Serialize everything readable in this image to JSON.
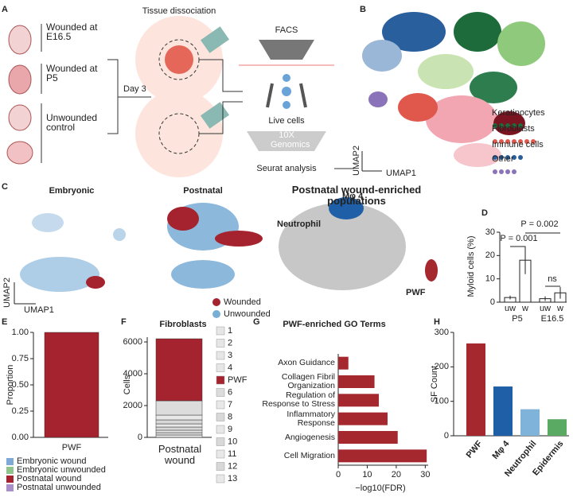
{
  "panel_labels": [
    "A",
    "B",
    "C",
    "D",
    "E",
    "F",
    "G",
    "H"
  ],
  "schematic": {
    "groups": [
      "Wounded at\nE16.5",
      "Wounded at\nP5",
      "Unwounded\ncontrol"
    ],
    "day": "Day 3",
    "dissociation": "Tissue dissociation",
    "facs": "FACS",
    "live": "Live cells",
    "genomics": "10X\nGenomics",
    "seurat": "Seurat analysis"
  },
  "umap_b": {
    "legend": [
      "Keratinocytes",
      "Fibroblasts",
      "Immune cells",
      "Other"
    ],
    "x_label": "UMAP1",
    "y_label": "UMAP2"
  },
  "umap_c": {
    "titles": [
      "Embryonic",
      "Postnatal",
      "Postnatal wound-enriched\npopulations"
    ],
    "labels": [
      "Neutrophil",
      "Mφ 4",
      "PWF"
    ],
    "legend": [
      {
        "name": "Wounded",
        "color": "#a4232e"
      },
      {
        "name": "Unwounded",
        "color": "#79aed4"
      }
    ],
    "x_label": "UMAP1",
    "y_label": "UMAP2"
  },
  "chart_data": [
    {
      "type": "bar",
      "ylabel": "Myloid cells (%)",
      "categories": [
        "uw",
        "w",
        "uw",
        "w"
      ],
      "groups": [
        "P5",
        "E16.5"
      ],
      "values": [
        2,
        18,
        1.5,
        4
      ],
      "errors": [
        0.8,
        6,
        1,
        2.5
      ],
      "ylim": [
        0,
        30
      ],
      "yticks": [
        0,
        10,
        20,
        30
      ],
      "annotations": [
        "P = 0.002",
        "P = 0.001",
        "ns"
      ]
    },
    {
      "type": "stacked",
      "ylabel": "Proportion",
      "categories": [
        "PWF"
      ],
      "series": [
        {
          "name": "Embryonic wound",
          "color": "#7fa9d6",
          "values": [
            0
          ]
        },
        {
          "name": "Embryonic unwounded",
          "color": "#8fc48c",
          "values": [
            0
          ]
        },
        {
          "name": "Postnatal wound",
          "color": "#a4232e",
          "values": [
            1.0
          ]
        },
        {
          "name": "Postnatal unwounded",
          "color": "#a98fc9",
          "values": [
            0
          ]
        }
      ],
      "ylim": [
        0,
        1
      ],
      "yticks": [
        {
          "value": 0,
          "label": "0.00"
        },
        {
          "value": 0.25,
          "label": "0.25"
        },
        {
          "value": 0.5,
          "label": "0.50"
        },
        {
          "value": 0.75,
          "label": "0.75"
        },
        {
          "value": 1,
          "label": "1.00"
        }
      ]
    },
    {
      "type": "stacked",
      "title": "Fibroblasts",
      "ylabel": "Cells",
      "categories": [
        "Postnatal\nwound"
      ],
      "series": [
        {
          "name": "1",
          "color": "#e6e6e6",
          "values": [
            0
          ]
        },
        {
          "name": "2",
          "color": "#e6e6e6",
          "values": [
            0
          ]
        },
        {
          "name": "3",
          "color": "#e6e6e6",
          "values": [
            0
          ]
        },
        {
          "name": "4",
          "color": "#e6e6e6",
          "values": [
            0
          ]
        },
        {
          "name": "PWF",
          "color": "#a4232e",
          "values": [
            3900
          ]
        },
        {
          "name": "6",
          "color": "#dcdcdc",
          "values": [
            900
          ]
        },
        {
          "name": "7",
          "color": "#e8e8e8",
          "values": [
            300
          ]
        },
        {
          "name": "8",
          "color": "#d8d8d8",
          "values": [
            250
          ]
        },
        {
          "name": "9",
          "color": "#e8e8e8",
          "values": [
            200
          ]
        },
        {
          "name": "10",
          "color": "#d8d8d8",
          "values": [
            200
          ]
        },
        {
          "name": "11",
          "color": "#e8e8e8",
          "values": [
            150
          ]
        },
        {
          "name": "12",
          "color": "#d8d8d8",
          "values": [
            150
          ]
        },
        {
          "name": "13",
          "color": "#e8e8e8",
          "values": [
            150
          ]
        }
      ],
      "ylim": [
        0,
        6300
      ],
      "yticks": [
        0,
        2000,
        4000,
        6000
      ]
    },
    {
      "type": "hbar",
      "title": "PWF-enriched GO Terms",
      "xlabel": "−log10(FDR)",
      "categories": [
        "Axon Guidance",
        "Collagen Fibril\nOrganization",
        "Regulation of\nResponse to Stress",
        "Inflammatory\nResponse",
        "Angiogenesis",
        "Cell Migration"
      ],
      "values": [
        3.5,
        12.5,
        14,
        17,
        20.5,
        30.5
      ],
      "color": "#a4282e",
      "xlim": [
        0,
        31
      ],
      "xticks": [
        0,
        10,
        20,
        30
      ]
    },
    {
      "type": "bar",
      "ylabel": "SF Count",
      "categories": [
        "PWF",
        "Mφ 4",
        "Neutrophil",
        "Epidermis"
      ],
      "values": [
        268,
        143,
        77,
        48
      ],
      "colors": [
        "#a4282e",
        "#1f5fa8",
        "#7fb3d9",
        "#5aaa63"
      ],
      "ylim": [
        0,
        300
      ],
      "yticks": [
        0,
        100,
        200,
        300
      ]
    }
  ]
}
